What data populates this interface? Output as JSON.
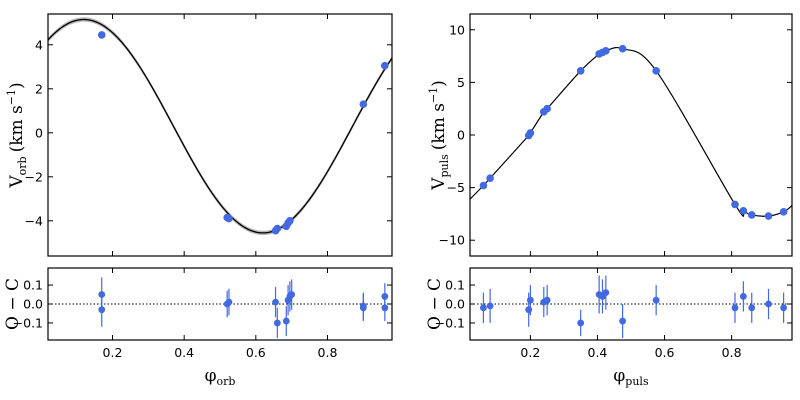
{
  "chart_data": [
    {
      "type": "scatter",
      "panel": "orbital-velocity",
      "xlabel": "φ",
      "xlabel_sub": "orb",
      "ylabel": "V",
      "ylabel_sub": "orb",
      "ylabel_unit": "(km s",
      "ylabel_exp": "−1",
      "ylabel_close": ")",
      "xlim": [
        0.02,
        0.98
      ],
      "ylim": [
        -5.6,
        5.4
      ],
      "xticks": [
        0.2,
        0.4,
        0.6,
        0.8
      ],
      "xtick_labels": [
        "0.2",
        "0.4",
        "0.6",
        "0.8"
      ],
      "yticks": [
        -4,
        -2,
        0,
        2,
        4
      ],
      "ytick_labels": [
        "−4",
        "−2",
        "0",
        "2",
        "4"
      ],
      "model": {
        "type": "sine",
        "offset": 0.3,
        "amplitude": 4.85,
        "phase_of_max": 0.12,
        "period": 1,
        "band_halfwidth": 0.1,
        "color": "#000000",
        "band_color": "#b0b0b0"
      },
      "point_color": "#4169e1",
      "x": [
        0.17,
        0.52,
        0.525,
        0.655,
        0.66,
        0.685,
        0.69,
        0.695,
        0.9,
        0.96
      ],
      "y": [
        4.45,
        -3.85,
        -3.9,
        -4.45,
        -4.35,
        -4.25,
        -4.1,
        -4.0,
        1.3,
        3.05
      ]
    },
    {
      "type": "scatter",
      "panel": "pulsation-velocity",
      "xlabel": "φ",
      "xlabel_sub": "puls",
      "ylabel": "V",
      "ylabel_sub": "puls",
      "ylabel_unit": "(km s",
      "ylabel_exp": "−1",
      "ylabel_close": ")",
      "xlim": [
        0.02,
        0.98
      ],
      "ylim": [
        -11.5,
        11.5
      ],
      "xticks": [
        0.2,
        0.4,
        0.6,
        0.8
      ],
      "xtick_labels": [
        "0.2",
        "0.4",
        "0.6",
        "0.8"
      ],
      "yticks": [
        -10,
        -5,
        0,
        5,
        10
      ],
      "ytick_labels": [
        "−10",
        "−5",
        "0",
        "5",
        "10"
      ],
      "model_color": "#000000",
      "point_color": "#4169e1",
      "x": [
        0.06,
        0.08,
        0.195,
        0.2,
        0.24,
        0.25,
        0.35,
        0.405,
        0.415,
        0.425,
        0.475,
        0.575,
        0.81,
        0.835,
        0.86,
        0.91,
        0.955
      ],
      "y": [
        -4.8,
        -4.1,
        -0.05,
        0.2,
        2.2,
        2.5,
        6.1,
        7.7,
        7.85,
        8.0,
        8.2,
        6.1,
        -6.6,
        -7.2,
        -7.6,
        -7.7,
        -7.3
      ]
    },
    {
      "type": "scatter",
      "panel": "orbital-residuals",
      "xlabel": "φ",
      "xlabel_sub": "orb",
      "ylabel": "O − C",
      "xlim": [
        0.02,
        0.98
      ],
      "ylim": [
        -0.19,
        0.19
      ],
      "xticks": [
        0.2,
        0.4,
        0.6,
        0.8
      ],
      "xtick_labels": [
        "0.2",
        "0.4",
        "0.6",
        "0.8"
      ],
      "yticks": [
        -0.1,
        0.0,
        0.1
      ],
      "ytick_labels": [
        "−0.1",
        "0.0",
        "0.1"
      ],
      "zero_line": true,
      "point_color": "#4169e1",
      "x": [
        0.17,
        0.17,
        0.52,
        0.525,
        0.655,
        0.66,
        0.685,
        0.69,
        0.695,
        0.7,
        0.9,
        0.9,
        0.96,
        0.96
      ],
      "y": [
        0.05,
        -0.03,
        0.0,
        0.01,
        0.01,
        -0.1,
        -0.09,
        0.02,
        0.04,
        0.05,
        -0.02,
        -0.01,
        0.04,
        -0.02
      ],
      "err": [
        0.09,
        0.09,
        0.07,
        0.07,
        0.08,
        0.08,
        0.08,
        0.08,
        0.08,
        0.08,
        0.07,
        0.07,
        0.07,
        0.07
      ]
    },
    {
      "type": "scatter",
      "panel": "pulsation-residuals",
      "xlabel": "φ",
      "xlabel_sub": "puls",
      "ylabel": "O − C",
      "xlim": [
        0.02,
        0.98
      ],
      "ylim": [
        -0.19,
        0.19
      ],
      "xticks": [
        0.2,
        0.4,
        0.6,
        0.8
      ],
      "xtick_labels": [
        "0.2",
        "0.4",
        "0.6",
        "0.8"
      ],
      "yticks": [
        -0.1,
        0.0,
        0.1
      ],
      "ytick_labels": [
        "−0.1",
        "0.0",
        "0.1"
      ],
      "zero_line": true,
      "point_color": "#4169e1",
      "x": [
        0.06,
        0.08,
        0.195,
        0.2,
        0.24,
        0.25,
        0.35,
        0.405,
        0.415,
        0.425,
        0.475,
        0.575,
        0.81,
        0.835,
        0.86,
        0.91,
        0.955
      ],
      "y": [
        -0.02,
        -0.01,
        -0.03,
        0.02,
        0.01,
        0.02,
        -0.1,
        0.05,
        0.04,
        0.06,
        -0.09,
        0.02,
        -0.02,
        0.04,
        -0.02,
        0.0,
        -0.02
      ],
      "err": [
        0.08,
        0.09,
        0.09,
        0.08,
        0.08,
        0.08,
        0.07,
        0.1,
        0.09,
        0.09,
        0.09,
        0.08,
        0.08,
        0.08,
        0.08,
        0.08,
        0.08
      ]
    }
  ]
}
